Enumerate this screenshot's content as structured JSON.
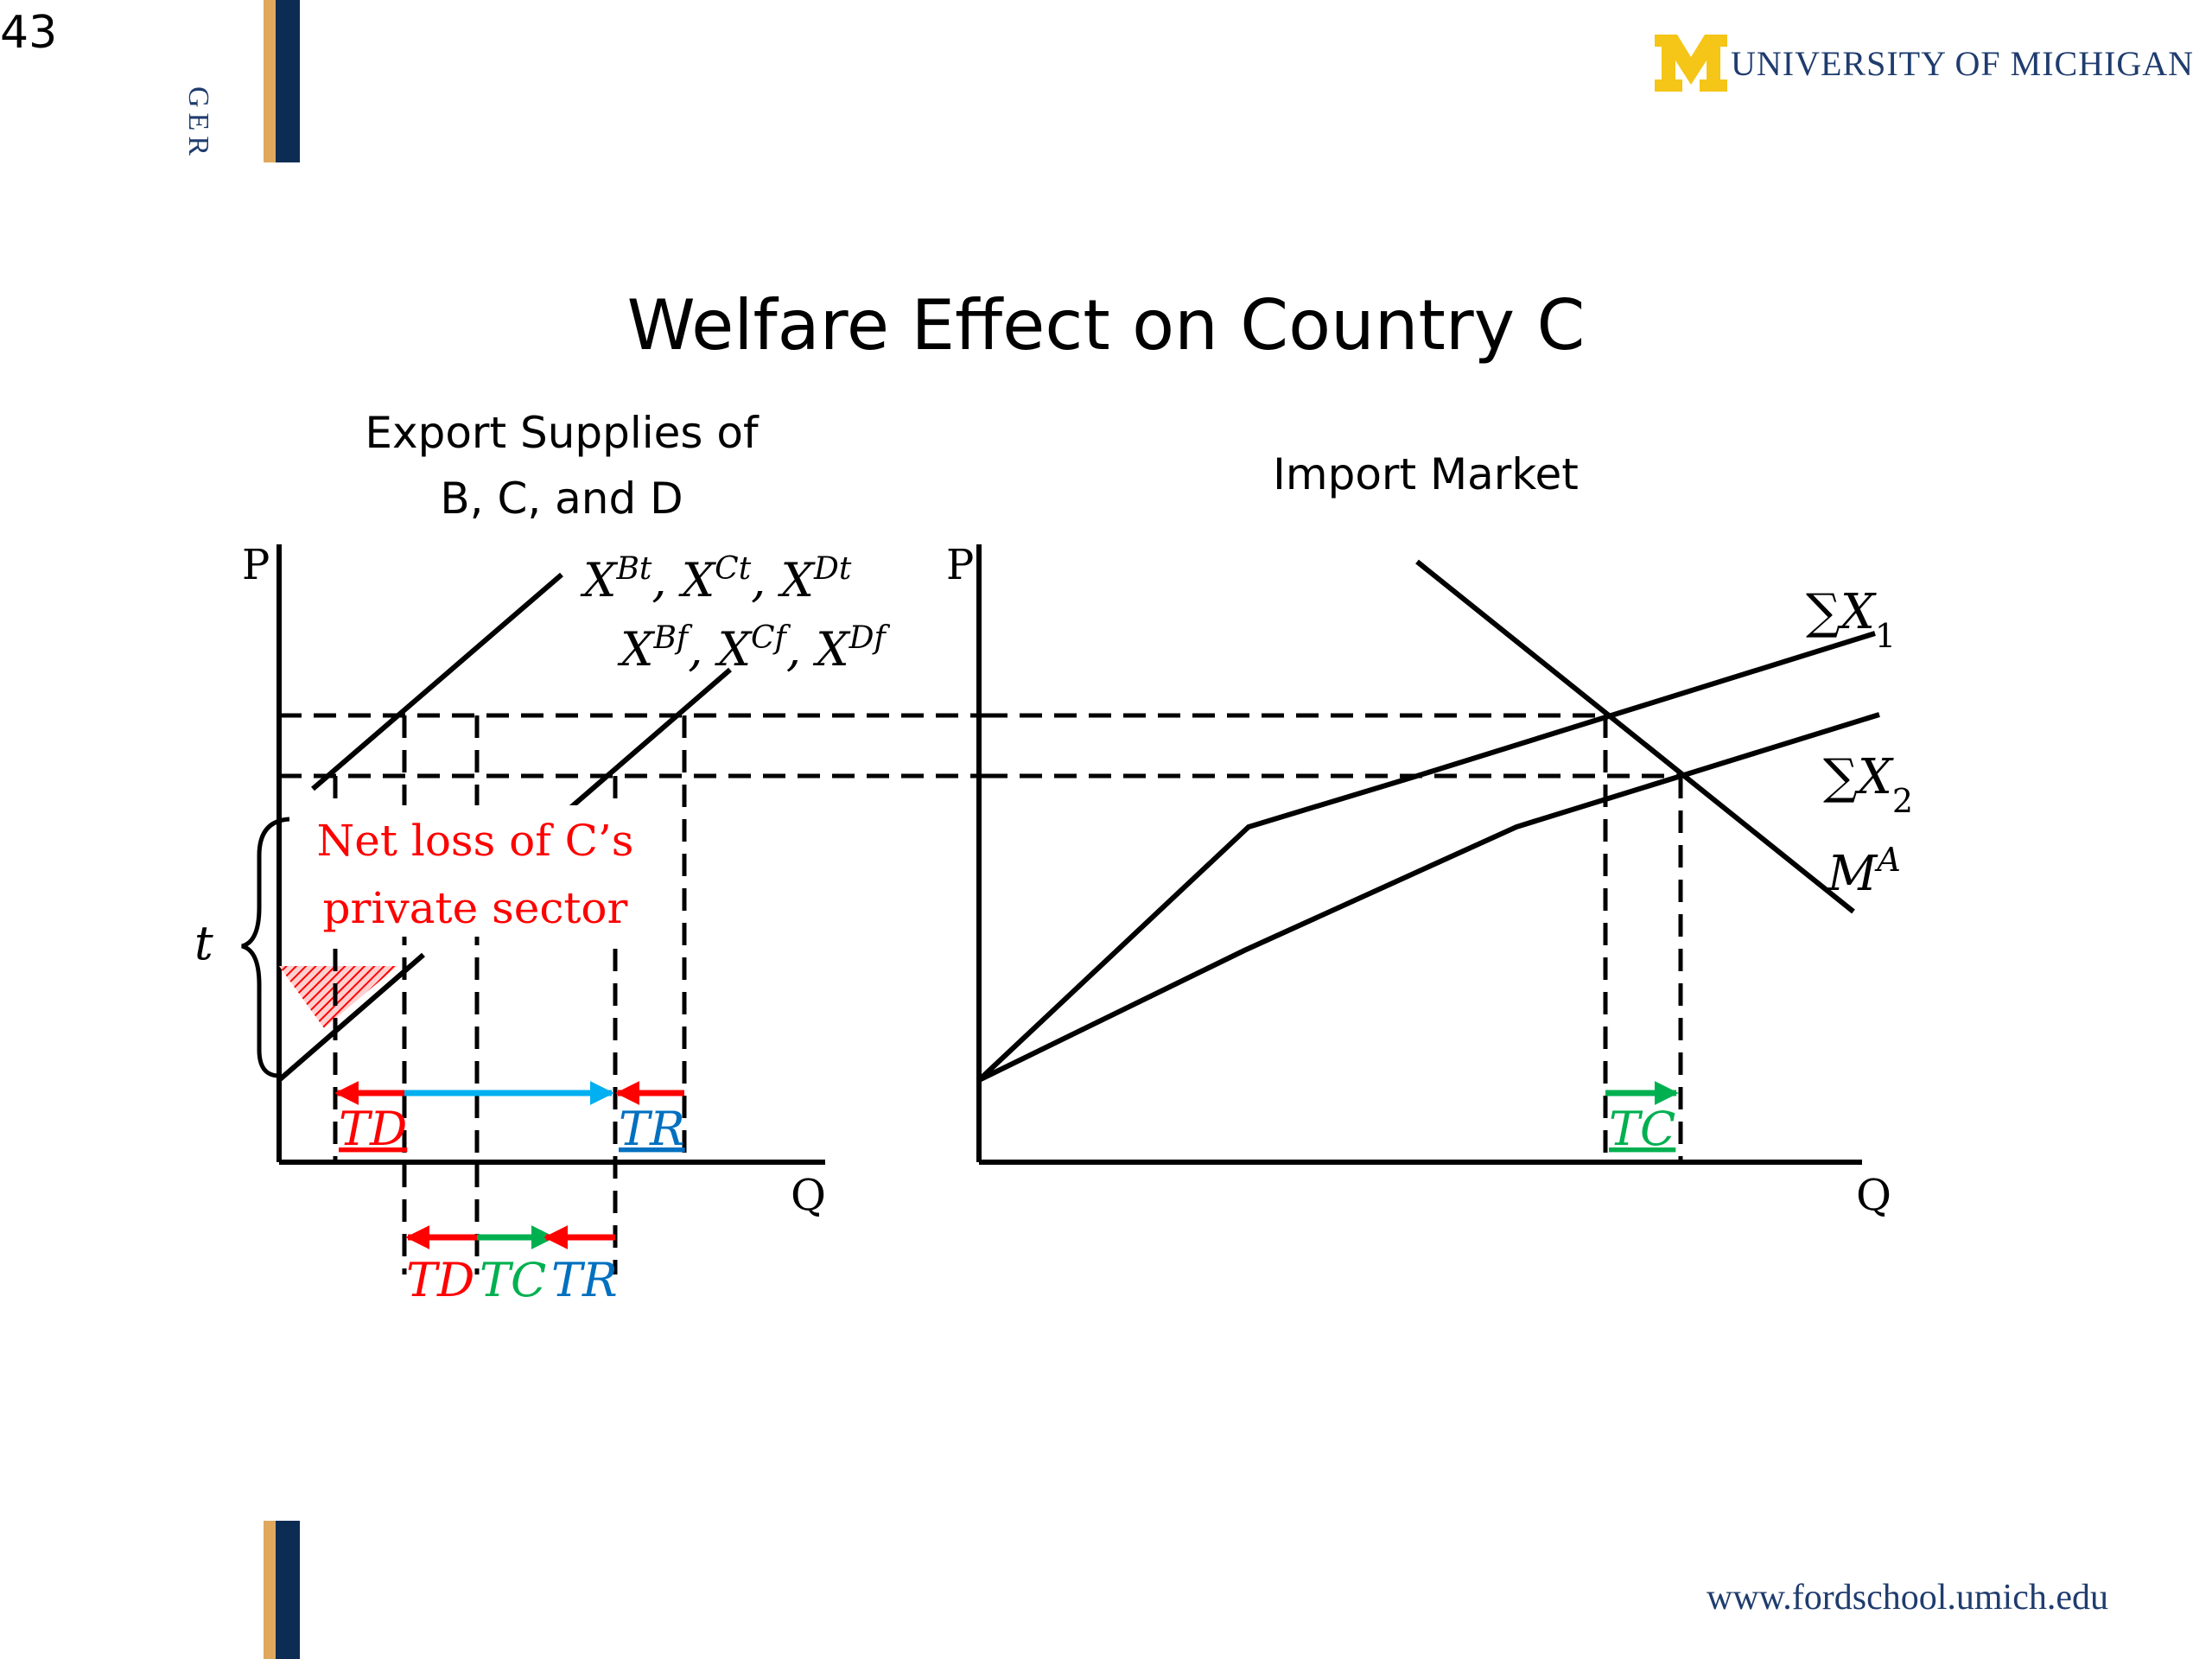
{
  "slide": {
    "number": "43",
    "side_text": "GER",
    "title": "Welfare Effect on Country C",
    "logo": {
      "initial": "M",
      "name": "UNIVERSITY OF MICHIGAN",
      "m_color": "#f5c518",
      "text_color": "#1f3c6e"
    },
    "footer_url": "www.fordschool.umich.edu"
  },
  "left_panel": {
    "heading_line1": "Export Supplies of",
    "heading_line2": "B, C, and D",
    "y_axis_label": "P",
    "x_axis_label": "Q",
    "curve_label_top": "X^{Bt}, X^{Ct}, X^{Dt}",
    "curve_label_bottom": "X^{Bf}, X^{Cf}, X^{Df}",
    "tariff_label": "t",
    "net_loss_line1": "Net loss of C’s",
    "net_loss_line2": "private sector",
    "arrow_labels_upper": [
      "TD",
      "TR"
    ],
    "arrow_labels_lower": [
      "TD",
      "TC",
      "TR"
    ]
  },
  "right_panel": {
    "heading": "Import Market",
    "y_axis_label": "P",
    "x_axis_label": "Q",
    "curve_labels": [
      "∑X1",
      "∑X2",
      "M^A"
    ],
    "arrow_label": "TC"
  },
  "colors": {
    "red": "#ff0000",
    "blue": "#00b0f0",
    "green": "#00b050",
    "dark_blue": "#0070c0",
    "bar_navy": "#0d2c54",
    "bar_gold": "#e0a85c"
  }
}
